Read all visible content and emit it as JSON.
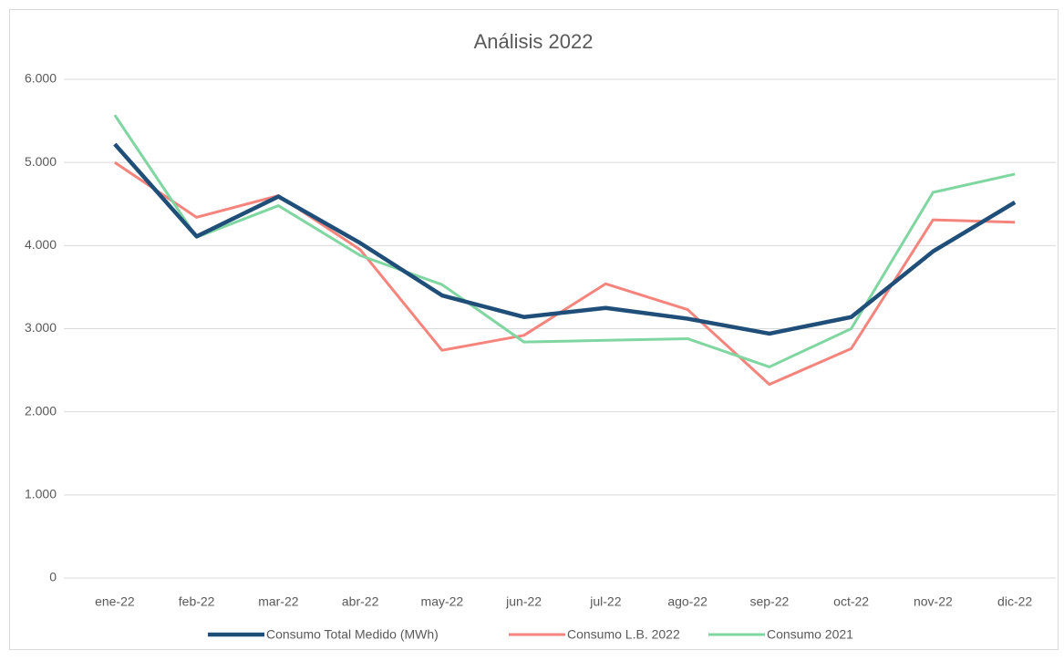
{
  "chart_data": {
    "type": "line",
    "title": "Análisis 2022",
    "categories": [
      "ene-22",
      "feb-22",
      "mar-22",
      "abr-22",
      "may-22",
      "jun-22",
      "jul-22",
      "ago-22",
      "sep-22",
      "oct-22",
      "nov-22",
      "dic-22"
    ],
    "series": [
      {
        "name": "Consumo Total Medido (MWh)",
        "color": "#1f4e79",
        "values": [
          5220,
          4110,
          4590,
          4030,
          3400,
          3140,
          3250,
          3120,
          2940,
          3140,
          3930,
          4520
        ]
      },
      {
        "name": "Consumo L.B. 2022",
        "color": "#f4847c",
        "values": [
          5000,
          4340,
          4600,
          3950,
          2740,
          2920,
          3540,
          3230,
          2330,
          2760,
          4310,
          4280
        ]
      },
      {
        "name": "Consumo 2021",
        "color": "#7fd6a0",
        "values": [
          5570,
          4100,
          4480,
          3880,
          3530,
          2840,
          2860,
          2880,
          2540,
          3000,
          4640,
          4860
        ]
      }
    ],
    "ylim": [
      0,
      6000
    ],
    "yticks": [
      0,
      {
        "value": 1000,
        "label": "1.000"
      },
      {
        "value": 2000,
        "label": "2.000"
      },
      {
        "value": 3000,
        "label": "3.000"
      },
      {
        "value": 4000,
        "label": "4.000"
      },
      {
        "value": 5000,
        "label": "5.000"
      },
      {
        "value": 6000,
        "label": "6.000"
      }
    ],
    "grid": true,
    "legend": "bottom"
  }
}
